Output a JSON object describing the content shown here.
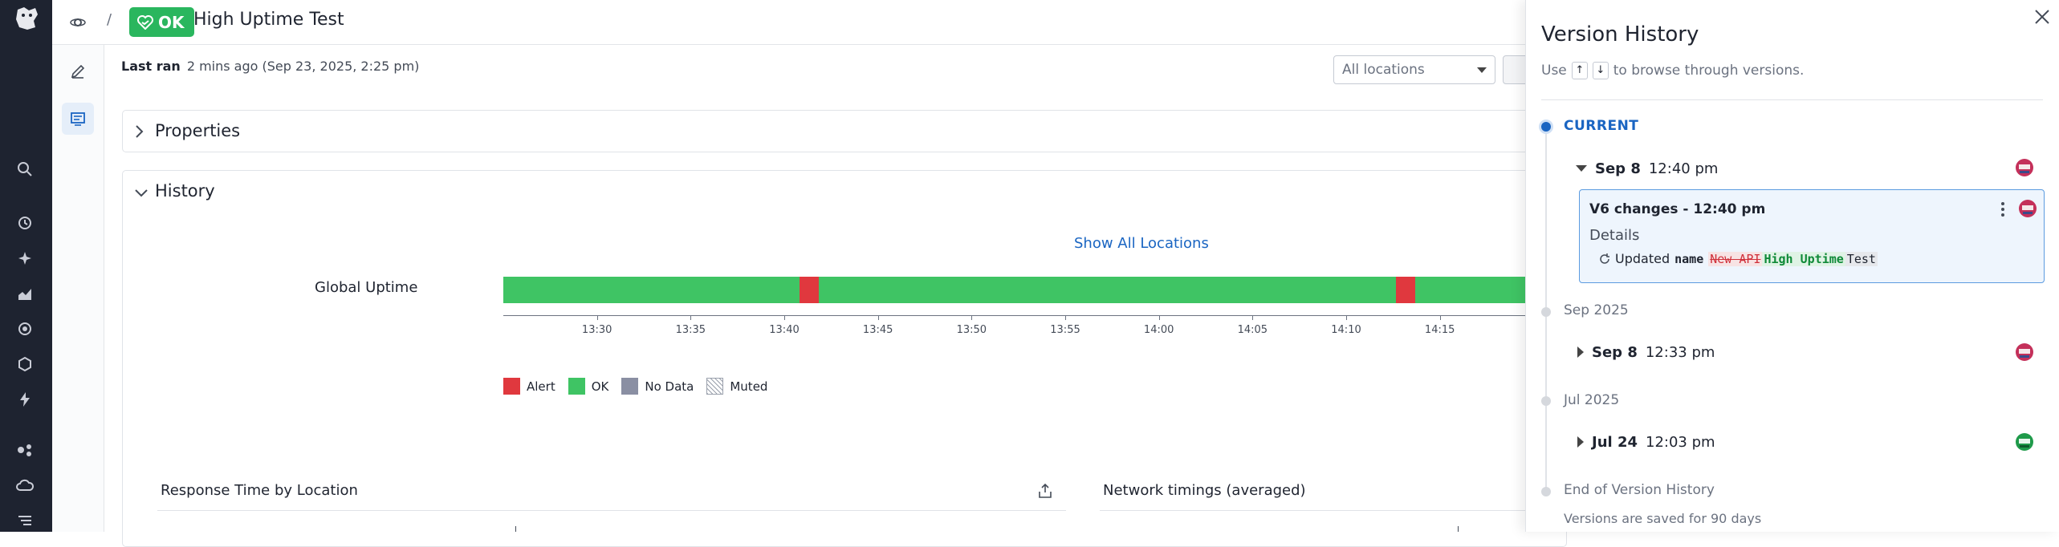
{
  "header": {
    "breadcrumb_separator": "/",
    "status_badge": "OK",
    "title": "High Uptime Test"
  },
  "main": {
    "last_ran_label": "Last ran",
    "last_ran_value": "2 mins ago (Sep 23, 2025, 2:25 pm)",
    "locations_placeholder": "All locations",
    "properties_title": "Properties",
    "history_title": "History",
    "show_all_locations": "Show All Locations",
    "global_uptime_label": "Global Uptime",
    "uptime_segments": [
      {
        "start": "13:25:00",
        "end": "13:40:50",
        "status": "OK"
      },
      {
        "start": "13:40:50",
        "end": "13:41:50",
        "status": "Alert"
      },
      {
        "start": "13:41:50",
        "end": "14:12:40",
        "status": "OK"
      },
      {
        "start": "14:12:40",
        "end": "14:13:40",
        "status": "Alert"
      },
      {
        "start": "14:13:40",
        "end": "14:25:00",
        "status": "OK"
      }
    ],
    "time_ticks": [
      "13:30",
      "13:35",
      "13:40",
      "13:45",
      "13:50",
      "13:55",
      "14:00",
      "14:05",
      "14:10",
      "14:15"
    ],
    "legend": [
      {
        "label": "Alert",
        "color": "#e0383e"
      },
      {
        "label": "OK",
        "color": "#3fc464"
      },
      {
        "label": "No Data",
        "color": "#8a8fa3"
      },
      {
        "label": "Muted",
        "color": "pattern"
      }
    ],
    "card_response_time": "Response Time by Location",
    "card_network": "Network timings (averaged)"
  },
  "drawer": {
    "title": "Version History",
    "hint_prefix": "Use",
    "hint_key_up": "↑",
    "hint_key_down": "↓",
    "hint_suffix": "to browse through versions.",
    "current_label": "CURRENT",
    "current_version": {
      "date": "Sep 8",
      "time": "12:40 pm"
    },
    "change_card": {
      "title": "V6 changes - 12:40 pm",
      "details": "Details",
      "updated": "Updated",
      "field": "name",
      "removed": "New API",
      "added": "High Uptime",
      "unchanged": "Test"
    },
    "group_1": "Sep 2025",
    "version_sep": {
      "date": "Sep 8",
      "time": "12:33 pm"
    },
    "group_2": "Jul 2025",
    "version_jul": {
      "date": "Jul 24",
      "time": "12:03 pm"
    },
    "end_label": "End of Version History",
    "retention_note": "Versions are saved for 90 days"
  },
  "colors": {
    "ok": "#2ab65e",
    "alert": "#e0383e",
    "accent": "#1a65c2",
    "nav_bg": "#1e2330"
  }
}
